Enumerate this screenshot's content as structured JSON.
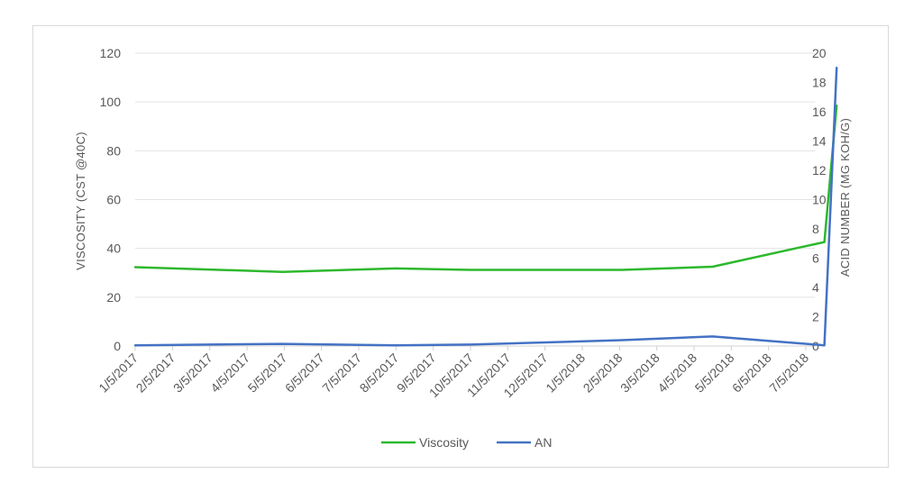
{
  "chart_data": {
    "type": "line",
    "title": "",
    "x": [
      "1/5/2017",
      "2/5/2017",
      "3/5/2017",
      "4/5/2017",
      "5/5/2017",
      "6/5/2017",
      "7/5/2017",
      "8/5/2017",
      "9/5/2017",
      "10/5/2017",
      "11/5/2017",
      "12/5/2017",
      "1/5/2018",
      "2/5/2018",
      "3/5/2018",
      "4/5/2018",
      "5/5/2018",
      "6/5/2018",
      "7/5/2018"
    ],
    "series": [
      {
        "name": "Viscosity",
        "axis": "left",
        "color": "#2db82d",
        "points": [
          {
            "x": "1/5/2017",
            "y": 32.3
          },
          {
            "x": "5/5/2017",
            "y": 30.4
          },
          {
            "x": "8/5/2017",
            "y": 31.8
          },
          {
            "x": "10/5/2017",
            "y": 31.2
          },
          {
            "x": "2/5/2018",
            "y": 31.2
          },
          {
            "x": "4/20/2018",
            "y": 32.5
          },
          {
            "x": "7/20/2018",
            "y": 42.6
          },
          {
            "x": "7/30/2018",
            "y": 98.5
          }
        ]
      },
      {
        "name": "AN",
        "axis": "right",
        "color": "#4472c4",
        "points": [
          {
            "x": "1/5/2017",
            "y": 0.05
          },
          {
            "x": "5/5/2017",
            "y": 0.15
          },
          {
            "x": "8/5/2017",
            "y": 0.05
          },
          {
            "x": "10/5/2017",
            "y": 0.1
          },
          {
            "x": "2/5/2018",
            "y": 0.4
          },
          {
            "x": "4/20/2018",
            "y": 0.65
          },
          {
            "x": "7/20/2018",
            "y": 0.05
          },
          {
            "x": "7/30/2018",
            "y": 19.0
          }
        ]
      }
    ],
    "y_left": {
      "label": "VISCOSITY (CST @40C)",
      "ticks": [
        "0",
        "20",
        "40",
        "60",
        "80",
        "100",
        "120"
      ],
      "ylim": [
        0,
        120
      ]
    },
    "y_right": {
      "label": "ACID NUMBER (MG KOH/G)",
      "ticks": [
        "0",
        "2",
        "4",
        "6",
        "8",
        "10",
        "12",
        "14",
        "16",
        "18",
        "20"
      ],
      "ylim": [
        0,
        20
      ]
    },
    "grid": true,
    "legend_position": "bottom"
  }
}
